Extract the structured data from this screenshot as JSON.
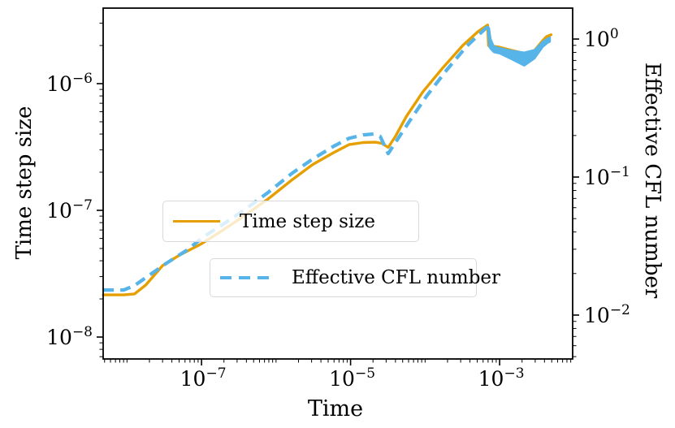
{
  "chart_data": {
    "type": "line",
    "title": "",
    "xlabel": "Time",
    "ylabel_left": "Time step size",
    "ylabel_right": "Effective CFL number",
    "grid": false,
    "x_axis": {
      "scale": "log",
      "range_log10": [
        -8.32,
        -2.02
      ],
      "major_ticks": [
        {
          "value_log10": -7,
          "base": "10",
          "exp": "−7"
        },
        {
          "value_log10": -5,
          "base": "10",
          "exp": "−5"
        },
        {
          "value_log10": -3,
          "base": "10",
          "exp": "−3"
        }
      ],
      "extra_minor_decades": [
        -8,
        -6,
        -4,
        -2
      ]
    },
    "y_left": {
      "scale": "log",
      "range_log10": [
        -8.173,
        -5.404
      ],
      "major_ticks": [
        {
          "value_log10": -6,
          "base": "10",
          "exp": "−6"
        },
        {
          "value_log10": -7,
          "base": "10",
          "exp": "−7"
        },
        {
          "value_log10": -8,
          "base": "10",
          "exp": "−8"
        }
      ]
    },
    "y_right": {
      "scale": "log",
      "range_log10": [
        -2.318,
        0.224
      ],
      "major_ticks": [
        {
          "value_log10": 0,
          "base": "10",
          "exp": "0"
        },
        {
          "value_log10": -1,
          "base": "10",
          "exp": "−1"
        },
        {
          "value_log10": -2,
          "base": "10",
          "exp": "−2"
        }
      ]
    },
    "series": [
      {
        "name": "Time step size",
        "axis": "left",
        "color": "#E69F00",
        "style": "solid",
        "points": [
          [
            4.8e-09,
            2.15e-08
          ],
          [
            9e-09,
            2.15e-08
          ],
          [
            1.26e-08,
            2.19e-08
          ],
          [
            1.78e-08,
            2.57e-08
          ],
          [
            3e-08,
            3.66e-08
          ],
          [
            4.9e-08,
            4.38e-08
          ],
          [
            1e-07,
            5.45e-08
          ],
          [
            1.95e-07,
            7e-08
          ],
          [
            3.7e-07,
            9e-08
          ],
          [
            7.8e-07,
            1.23e-07
          ],
          [
            1.66e-06,
            1.75e-07
          ],
          [
            3.1e-06,
            2.3e-07
          ],
          [
            5.9e-06,
            2.85e-07
          ],
          [
            9.5e-06,
            3.3e-07
          ],
          [
            1.48e-05,
            3.43e-07
          ],
          [
            2.14e-05,
            3.45e-07
          ],
          [
            2.63e-05,
            3.38e-07
          ],
          [
            3.2e-05,
            3.14e-07
          ],
          [
            4e-05,
            3.83e-07
          ],
          [
            5.6e-05,
            5.5e-07
          ],
          [
            9.3e-05,
            8.6e-07
          ],
          [
            0.000174,
            1.34e-06
          ],
          [
            0.00032,
            2e-06
          ],
          [
            0.00051,
            2.57e-06
          ],
          [
            0.00069,
            2.9e-06
          ],
          [
            0.00071,
            2e-06
          ],
          [
            0.001,
            1.94e-06
          ],
          [
            0.00145,
            1.83e-06
          ],
          [
            0.00214,
            1.73e-06
          ],
          [
            0.00295,
            1.83e-06
          ],
          [
            0.0038,
            2.19e-06
          ],
          [
            0.00427,
            2.35e-06
          ],
          [
            0.0049,
            2.43e-06
          ]
        ]
      },
      {
        "name": "Effective CFL number",
        "axis": "right",
        "color": "#56B4E9",
        "style": "dashed",
        "points": [
          [
            4.8e-09,
            0.0152
          ],
          [
            9e-09,
            0.0152
          ],
          [
            1.25e-08,
            0.0163
          ],
          [
            2.06e-08,
            0.0197
          ],
          [
            3.4e-08,
            0.0238
          ],
          [
            6.4e-08,
            0.0296
          ],
          [
            1.05e-07,
            0.0367
          ],
          [
            1.96e-07,
            0.0456
          ],
          [
            3.7e-07,
            0.0574
          ],
          [
            7.8e-07,
            0.0773
          ],
          [
            1.66e-06,
            0.107
          ],
          [
            3.1e-06,
            0.135
          ],
          [
            5.9e-06,
            0.167
          ],
          [
            9.5e-06,
            0.191
          ],
          [
            1.48e-05,
            0.202
          ],
          [
            2.05e-05,
            0.205
          ],
          [
            2.5e-05,
            0.197
          ],
          [
            3.2e-05,
            0.148
          ],
          [
            4.35e-05,
            0.191
          ],
          [
            6.3e-05,
            0.258
          ],
          [
            0.000105,
            0.387
          ],
          [
            0.000195,
            0.597
          ],
          [
            0.00036,
            0.885
          ],
          [
            0.00056,
            1.11
          ],
          [
            0.0007,
            1.24
          ]
        ],
        "band": [
          [
            0.000702,
            1.23,
            1.08
          ],
          [
            0.000725,
            1.2,
            0.875
          ],
          [
            0.00076,
            1.0,
            0.845
          ],
          [
            0.00084,
            0.885,
            0.8
          ],
          [
            0.001,
            0.862,
            0.784
          ],
          [
            0.00145,
            0.825,
            0.712
          ],
          [
            0.00214,
            0.8,
            0.64
          ],
          [
            0.00295,
            0.835,
            0.723
          ],
          [
            0.0038,
            0.96,
            0.875
          ],
          [
            0.0044,
            1.01,
            0.935
          ],
          [
            0.00475,
            1.03,
            0.955
          ]
        ]
      }
    ],
    "legend": [
      {
        "label": "Time step size",
        "color": "#E69F00",
        "style": "solid"
      },
      {
        "label": "Effective CFL number",
        "color": "#56B4E9",
        "style": "dashed"
      }
    ]
  }
}
